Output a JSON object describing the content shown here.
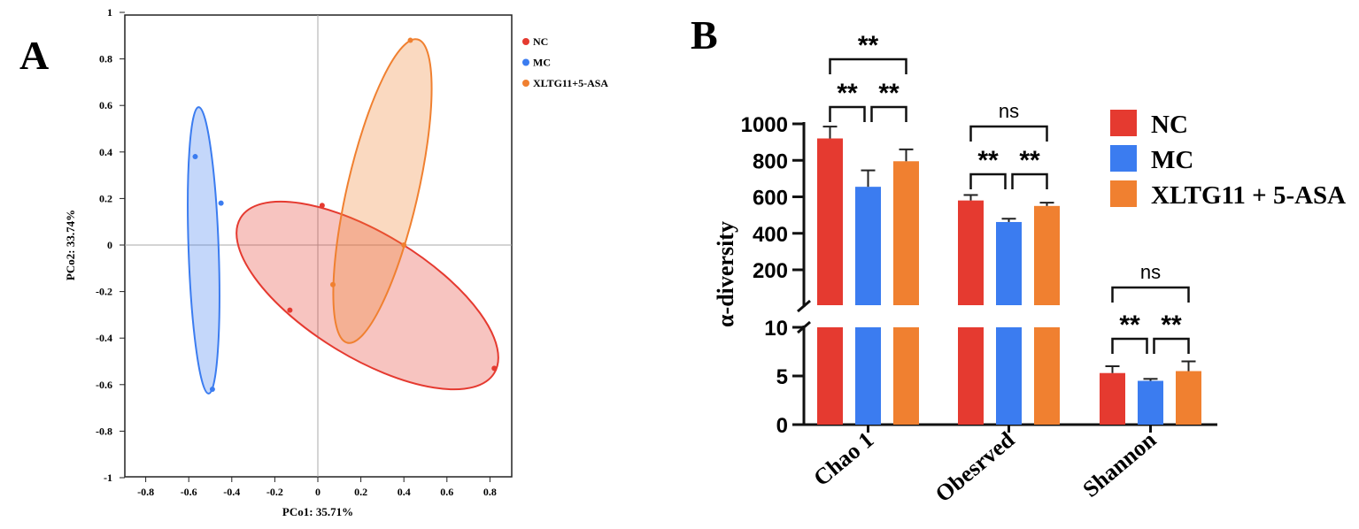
{
  "chart_data": [
    {
      "type": "scatter",
      "panel_label": "A",
      "xlabel": "PCo1: 35.71%",
      "ylabel": "PCo2: 33.74%",
      "xlim": [
        -0.9,
        0.92
      ],
      "ylim": [
        -1,
        1
      ],
      "xticks": [
        "-0.8",
        "-0.6",
        "-0.4",
        "-0.2",
        "0",
        "0.2",
        "0.4",
        "0.6",
        "0.8"
      ],
      "yticks": [
        "1",
        "0.8",
        "0.6",
        "0.4",
        "0.2",
        "0",
        "-0.2",
        "-0.4",
        "-0.6",
        "-0.8",
        "-1"
      ],
      "legend_position": "top-right outside",
      "series": [
        {
          "name": "NC",
          "color": "#e53a30",
          "points": [
            [
              0.02,
              0.17
            ],
            [
              -0.13,
              -0.28
            ],
            [
              0.82,
              -0.53
            ]
          ]
        },
        {
          "name": "MC",
          "color": "#3b7cf0",
          "points": [
            [
              -0.57,
              0.38
            ],
            [
              -0.45,
              0.18
            ],
            [
              -0.49,
              -0.62
            ]
          ]
        },
        {
          "name": "XLTG11+5-ASA",
          "color": "#f08030",
          "points": [
            [
              0.43,
              0.88
            ],
            [
              0.07,
              -0.17
            ],
            [
              0.4,
              0.0
            ]
          ]
        }
      ]
    },
    {
      "type": "bar",
      "panel_label": "B",
      "ylabel": "α-diversity",
      "categories": [
        "Chao 1",
        "Obesrved",
        "Shannon"
      ],
      "upper_yticks": [
        "1000",
        "800",
        "600",
        "400",
        "200"
      ],
      "lower_yticks": [
        "10",
        "5",
        "0"
      ],
      "axis_break": [
        10,
        100
      ],
      "legend_position": "top-right",
      "series": [
        {
          "name": "NC",
          "color": "#e53a30",
          "values": [
            920,
            580,
            5.3
          ],
          "errors": [
            65,
            30,
            0.7
          ]
        },
        {
          "name": "MC",
          "color": "#3b7cf0",
          "values": [
            655,
            462,
            4.5
          ],
          "errors": [
            90,
            18,
            0.2
          ]
        },
        {
          "name": "XLTG11 + 5-ASA",
          "color": "#f08030",
          "values": [
            795,
            550,
            5.5
          ],
          "errors": [
            65,
            18,
            1.0
          ]
        }
      ],
      "significance": [
        {
          "category": 0,
          "pair": "NC-XLTG",
          "label": "**"
        },
        {
          "category": 0,
          "pair": "NC-MC",
          "label": "**"
        },
        {
          "category": 0,
          "pair": "MC-XLTG",
          "label": "**"
        },
        {
          "category": 1,
          "pair": "NC-XLTG",
          "label": "ns"
        },
        {
          "category": 1,
          "pair": "NC-MC",
          "label": "**"
        },
        {
          "category": 1,
          "pair": "MC-XLTG",
          "label": "**"
        },
        {
          "category": 2,
          "pair": "NC-XLTG",
          "label": "ns"
        },
        {
          "category": 2,
          "pair": "NC-MC",
          "label": "**"
        },
        {
          "category": 2,
          "pair": "MC-XLTG",
          "label": "**"
        }
      ]
    }
  ]
}
